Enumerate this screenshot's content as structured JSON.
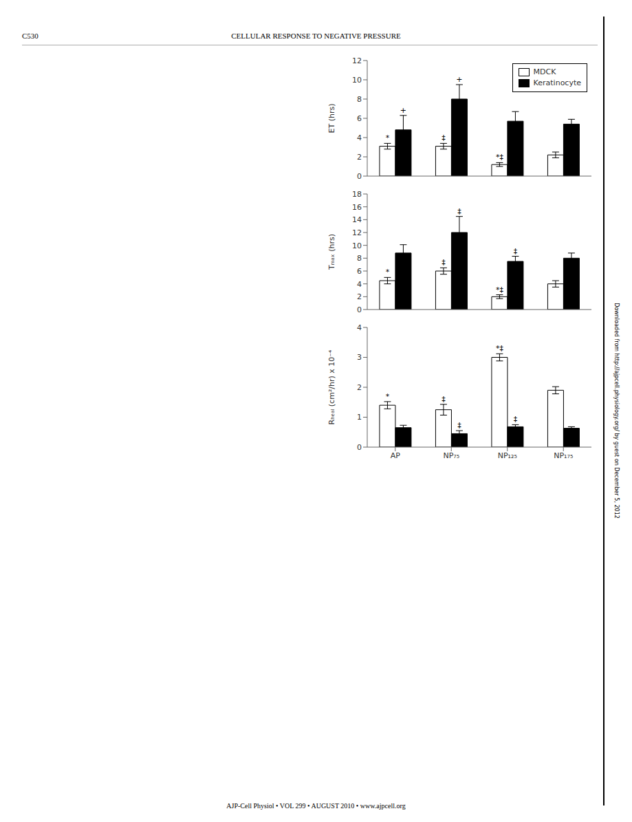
{
  "annotations": [
    "C530",
    "CELLULAR RESPONSE TO NEGATIVE PRESSURE",
    "AJP-Cell Physiol • VOL 299 • AUGUST 2010 • www.ajpcell.org",
    "Downloaded from http://ajpcell.physiology.org/ by guest on December 5, 2012"
  ],
  "chart_data": [
    {
      "type": "bar",
      "categories": [
        "AP",
        "NP₇₅",
        "NP₁₂₅",
        "NP₁₇₅"
      ],
      "ylabel": "ET (hrs)",
      "ylim": [
        0,
        12
      ],
      "yticks": [
        0,
        2,
        4,
        6,
        8,
        10,
        12
      ],
      "grid": false,
      "legend": "upper right",
      "tick_labels": "y",
      "series": [
        {
          "name": "MDCK",
          "color": "#ffffff",
          "values": [
            3.1,
            3.1,
            1.2,
            2.2
          ],
          "errors": [
            0.3,
            0.3,
            0.2,
            0.3
          ],
          "annotations": [
            "*",
            "‡",
            "*‡",
            null
          ]
        },
        {
          "name": "Keratinocyte",
          "color": "#000000",
          "values": [
            4.8,
            8.0,
            5.7,
            5.4
          ],
          "errors": [
            1.5,
            1.5,
            1.0,
            0.5
          ],
          "annotations": [
            "+",
            "+",
            null,
            null
          ]
        }
      ]
    },
    {
      "type": "bar",
      "categories": [
        "AP",
        "NP₇₅",
        "NP₁₂₅",
        "NP₁₇₅"
      ],
      "ylabel": "Tₘₐₓ (hrs)",
      "ylim": [
        0,
        18
      ],
      "yticks": [
        0,
        2,
        4,
        6,
        8,
        10,
        12,
        14,
        16,
        18
      ],
      "grid": false,
      "tick_labels": "y",
      "series": [
        {
          "name": "MDCK",
          "color": "#ffffff",
          "values": [
            4.5,
            6.0,
            2.0,
            4.0
          ],
          "errors": [
            0.5,
            0.5,
            0.3,
            0.5
          ],
          "annotations": [
            "*",
            "‡",
            "*‡",
            null
          ]
        },
        {
          "name": "Keratinocyte",
          "color": "#000000",
          "values": [
            8.8,
            12.0,
            7.5,
            8.0
          ],
          "errors": [
            1.3,
            2.5,
            0.8,
            0.8
          ],
          "annotations": [
            null,
            "‡",
            "‡",
            null
          ]
        }
      ]
    },
    {
      "type": "bar",
      "categories": [
        "AP",
        "NP₇₅",
        "NP₁₂₅",
        "NP₁₇₅"
      ],
      "ylabel": "Rₕₑₐₗ (cm²/hr) x 10⁻⁴",
      "ylim": [
        0,
        4
      ],
      "yticks": [
        0,
        1,
        2,
        3,
        4
      ],
      "grid": false,
      "series": [
        {
          "name": "MDCK",
          "color": "#ffffff",
          "values": [
            1.4,
            1.25,
            3.0,
            1.9
          ],
          "errors": [
            0.12,
            0.18,
            0.12,
            0.12
          ],
          "annotations": [
            "*",
            "‡",
            "*‡",
            null
          ]
        },
        {
          "name": "Keratinocyte",
          "color": "#000000",
          "values": [
            0.65,
            0.45,
            0.68,
            0.63
          ],
          "errors": [
            0.08,
            0.1,
            0.07,
            0.05
          ],
          "annotations": [
            null,
            "‡",
            "‡",
            null
          ]
        }
      ]
    }
  ]
}
